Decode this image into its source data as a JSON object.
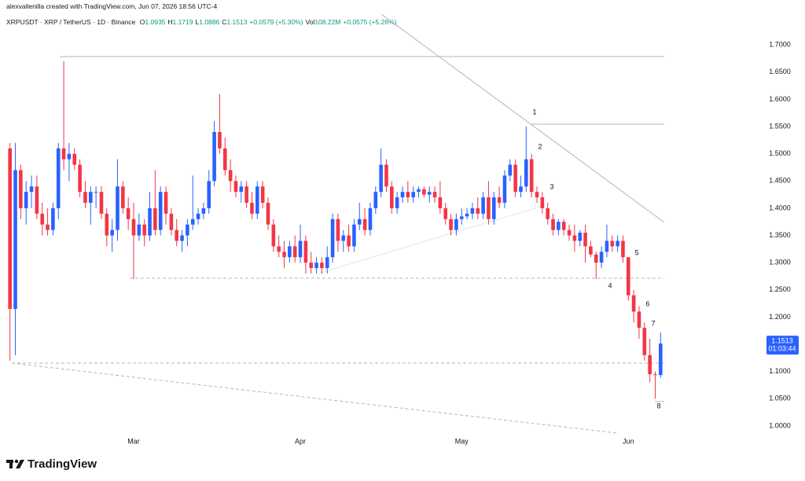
{
  "header": {
    "author_line": "alexvallenilla created with TradingView.com, Jun 07, 2026 18:56 UTC-4",
    "symbol": "XRPUSDT · XRP / TetherUS · 1D · Binance",
    "ohlc": [
      {
        "label": "O",
        "value": "1.0935"
      },
      {
        "label": "H",
        "value": "1.1719"
      },
      {
        "label": "L",
        "value": "1.0886"
      },
      {
        "label": "C",
        "value": "1.1513"
      }
    ],
    "change": "+0.0579 (+5.30%)",
    "volume_label": "Vol",
    "volume": "108.22M",
    "volume_change": "+0.0575 (+5.26%)"
  },
  "chart_data": {
    "type": "candlestick",
    "categories": [
      null,
      null,
      null,
      null,
      null,
      null,
      null,
      null,
      null,
      null,
      null,
      null,
      null,
      null,
      null,
      null,
      null,
      null,
      null,
      null,
      null,
      null,
      null,
      "Mar",
      null,
      null,
      null,
      null,
      null,
      null,
      null,
      null,
      null,
      null,
      null,
      null,
      null,
      null,
      null,
      null,
      null,
      null,
      null,
      null,
      null,
      null,
      null,
      null,
      null,
      null,
      null,
      null,
      null,
      null,
      "Apr",
      null,
      null,
      null,
      null,
      null,
      null,
      null,
      null,
      null,
      null,
      null,
      null,
      null,
      null,
      null,
      null,
      null,
      null,
      null,
      null,
      null,
      null,
      null,
      null,
      null,
      null,
      null,
      null,
      null,
      "May",
      null,
      null,
      null,
      null,
      null,
      null,
      null,
      null,
      null,
      null,
      null,
      null,
      null,
      null,
      null,
      null,
      null,
      null,
      null,
      null,
      null,
      null,
      null,
      null,
      null,
      null,
      null,
      null,
      null,
      null,
      "Jun",
      null,
      null,
      null,
      null,
      null,
      null
    ],
    "open": [
      1.51,
      1.215,
      1.47,
      1.4,
      1.43,
      1.44,
      1.39,
      1.37,
      1.36,
      1.4,
      1.51,
      1.49,
      1.5,
      1.48,
      1.43,
      1.41,
      1.43,
      1.43,
      1.39,
      1.35,
      1.36,
      1.44,
      1.4,
      1.38,
      1.35,
      1.37,
      1.35,
      1.4,
      1.36,
      1.43,
      1.39,
      1.36,
      1.34,
      1.35,
      1.37,
      1.38,
      1.39,
      1.4,
      1.45,
      1.54,
      1.51,
      1.47,
      1.45,
      1.43,
      1.44,
      1.41,
      1.39,
      1.44,
      1.41,
      1.37,
      1.33,
      1.32,
      1.31,
      1.33,
      1.31,
      1.34,
      1.3,
      1.29,
      1.3,
      1.29,
      1.31,
      1.38,
      1.34,
      1.35,
      1.33,
      1.37,
      1.38,
      1.36,
      1.4,
      1.43,
      1.48,
      1.44,
      1.4,
      1.42,
      1.43,
      1.42,
      1.43,
      1.435,
      1.425,
      1.43,
      1.42,
      1.4,
      1.38,
      1.36,
      1.38,
      1.385,
      1.39,
      1.4,
      1.39,
      1.42,
      1.38,
      1.42,
      1.41,
      1.46,
      1.48,
      1.43,
      1.44,
      1.49,
      1.43,
      1.42,
      1.4,
      1.38,
      1.36,
      1.375,
      1.36,
      1.35,
      1.34,
      1.355,
      1.33,
      1.315,
      1.3,
      1.32,
      1.34,
      1.33,
      1.34,
      1.31,
      1.24,
      1.21,
      1.18,
      1.13,
      1.095,
      1.0935
    ],
    "high": [
      1.52,
      1.52,
      1.48,
      1.45,
      1.46,
      1.46,
      1.41,
      1.4,
      1.41,
      1.52,
      1.67,
      1.52,
      1.51,
      1.49,
      1.45,
      1.44,
      1.44,
      1.44,
      1.4,
      1.38,
      1.49,
      1.45,
      1.42,
      1.41,
      1.39,
      1.38,
      1.43,
      1.47,
      1.44,
      1.44,
      1.4,
      1.38,
      1.36,
      1.38,
      1.46,
      1.4,
      1.41,
      1.47,
      1.56,
      1.61,
      1.53,
      1.49,
      1.46,
      1.45,
      1.45,
      1.43,
      1.45,
      1.45,
      1.42,
      1.38,
      1.35,
      1.34,
      1.34,
      1.35,
      1.37,
      1.35,
      1.32,
      1.31,
      1.31,
      1.33,
      1.39,
      1.39,
      1.36,
      1.37,
      1.38,
      1.41,
      1.4,
      1.41,
      1.44,
      1.51,
      1.49,
      1.45,
      1.43,
      1.44,
      1.45,
      1.44,
      1.44,
      1.44,
      1.44,
      1.44,
      1.45,
      1.41,
      1.39,
      1.39,
      1.4,
      1.4,
      1.41,
      1.42,
      1.43,
      1.45,
      1.43,
      1.44,
      1.47,
      1.49,
      1.49,
      1.46,
      1.55,
      1.5,
      1.44,
      1.43,
      1.41,
      1.39,
      1.38,
      1.38,
      1.37,
      1.37,
      1.36,
      1.37,
      1.34,
      1.32,
      1.33,
      1.37,
      1.35,
      1.35,
      1.35,
      1.31,
      1.25,
      1.22,
      1.19,
      1.16,
      1.1,
      1.1719
    ],
    "low": [
      1.12,
      1.13,
      1.38,
      1.37,
      1.4,
      1.38,
      1.35,
      1.35,
      1.35,
      1.38,
      1.47,
      1.45,
      1.47,
      1.42,
      1.4,
      1.37,
      1.4,
      1.38,
      1.33,
      1.32,
      1.34,
      1.39,
      1.36,
      1.27,
      1.34,
      1.33,
      1.34,
      1.35,
      1.35,
      1.37,
      1.35,
      1.33,
      1.32,
      1.33,
      1.36,
      1.37,
      1.38,
      1.39,
      1.44,
      1.5,
      1.46,
      1.43,
      1.42,
      1.41,
      1.4,
      1.38,
      1.38,
      1.4,
      1.36,
      1.32,
      1.31,
      1.29,
      1.3,
      1.3,
      1.3,
      1.28,
      1.28,
      1.28,
      1.28,
      1.28,
      1.3,
      1.32,
      1.32,
      1.32,
      1.32,
      1.36,
      1.35,
      1.35,
      1.39,
      1.42,
      1.43,
      1.39,
      1.39,
      1.41,
      1.41,
      1.41,
      1.42,
      1.42,
      1.41,
      1.41,
      1.39,
      1.37,
      1.35,
      1.35,
      1.37,
      1.38,
      1.38,
      1.38,
      1.38,
      1.37,
      1.37,
      1.4,
      1.4,
      1.45,
      1.42,
      1.42,
      1.43,
      1.42,
      1.41,
      1.39,
      1.37,
      1.35,
      1.35,
      1.35,
      1.34,
      1.32,
      1.33,
      1.3,
      1.31,
      1.27,
      1.29,
      1.31,
      1.32,
      1.32,
      1.3,
      1.23,
      1.19,
      1.16,
      1.12,
      1.08,
      1.05,
      1.0886
    ],
    "close": [
      1.215,
      1.47,
      1.4,
      1.43,
      1.44,
      1.39,
      1.37,
      1.36,
      1.4,
      1.51,
      1.49,
      1.5,
      1.48,
      1.43,
      1.41,
      1.43,
      1.43,
      1.39,
      1.35,
      1.36,
      1.44,
      1.4,
      1.38,
      1.35,
      1.37,
      1.35,
      1.4,
      1.36,
      1.43,
      1.39,
      1.36,
      1.34,
      1.35,
      1.37,
      1.38,
      1.39,
      1.4,
      1.45,
      1.54,
      1.51,
      1.47,
      1.45,
      1.43,
      1.44,
      1.41,
      1.39,
      1.44,
      1.41,
      1.37,
      1.33,
      1.32,
      1.31,
      1.33,
      1.31,
      1.34,
      1.3,
      1.29,
      1.3,
      1.29,
      1.31,
      1.38,
      1.34,
      1.35,
      1.33,
      1.37,
      1.38,
      1.36,
      1.4,
      1.43,
      1.48,
      1.44,
      1.4,
      1.42,
      1.43,
      1.42,
      1.43,
      1.435,
      1.425,
      1.43,
      1.42,
      1.4,
      1.38,
      1.36,
      1.38,
      1.385,
      1.39,
      1.4,
      1.39,
      1.42,
      1.38,
      1.42,
      1.41,
      1.46,
      1.48,
      1.43,
      1.44,
      1.49,
      1.43,
      1.42,
      1.4,
      1.38,
      1.36,
      1.375,
      1.36,
      1.35,
      1.34,
      1.355,
      1.33,
      1.315,
      1.3,
      1.32,
      1.34,
      1.33,
      1.34,
      1.31,
      1.24,
      1.21,
      1.18,
      1.13,
      1.095,
      1.0935,
      1.1513
    ],
    "up_color": "#2962ff",
    "down_color": "#f23645",
    "ylim": [
      0.9565,
      1.7711
    ],
    "yticks": [
      {
        "value": 1.0,
        "label": "1.0000"
      },
      {
        "value": 1.05,
        "label": "1.0500"
      },
      {
        "value": 1.1,
        "label": "1.1000"
      },
      {
        "value": 1.15,
        "label": "1.1500"
      },
      {
        "value": 1.2,
        "label": "1.2000"
      },
      {
        "value": 1.25,
        "label": "1.2500"
      },
      {
        "value": 1.3,
        "label": "1.3000"
      },
      {
        "value": 1.35,
        "label": "1.3500"
      },
      {
        "value": 1.4,
        "label": "1.4000"
      },
      {
        "value": 1.45,
        "label": "1.4500"
      },
      {
        "value": 1.5,
        "label": "1.5000"
      },
      {
        "value": 1.55,
        "label": "1.5500"
      },
      {
        "value": 1.6,
        "label": "1.6000"
      },
      {
        "value": 1.65,
        "label": "1.6500"
      },
      {
        "value": 1.7,
        "label": "1.7000"
      }
    ],
    "last_price_label": {
      "price": "1.1513",
      "countdown": "01:03:44"
    },
    "annotations": [
      "1",
      "2",
      "3",
      "4",
      "5",
      "6",
      "7",
      "8"
    ]
  },
  "footer": {
    "brand": "TradingView"
  }
}
